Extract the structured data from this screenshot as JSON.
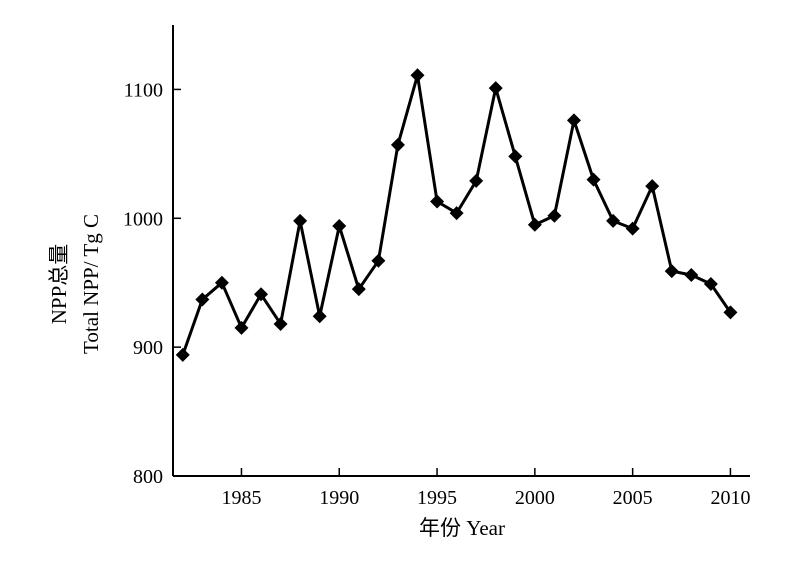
{
  "chart_data": {
    "type": "line",
    "xlabel": "年份 Year",
    "ylabel_line1": "NPP总量",
    "ylabel_line2": "Total NPP/ Tg C",
    "xlim": [
      1981.5,
      2011
    ],
    "ylim": [
      800,
      1150
    ],
    "x_ticks": [
      1985,
      1990,
      1995,
      2000,
      2005,
      2010
    ],
    "y_ticks": [
      800,
      900,
      1000,
      1100
    ],
    "marker": "diamond",
    "line_color": "#000000",
    "series": [
      {
        "x": [
          1982,
          1983,
          1984,
          1985,
          1986,
          1987,
          1988,
          1989,
          1990,
          1991,
          1992,
          1993,
          1994,
          1995,
          1996,
          1997,
          1998,
          1999,
          2000,
          2001,
          2002,
          2003,
          2004,
          2005,
          2006,
          2007,
          2008,
          2009,
          2010
        ],
        "y": [
          894,
          937,
          950,
          915,
          941,
          918,
          998,
          924,
          994,
          945,
          967,
          1057,
          1111,
          1013,
          1004,
          1029,
          1101,
          1048,
          995,
          1002,
          1076,
          1030,
          998,
          992,
          1025,
          959,
          956,
          949,
          927
        ]
      }
    ]
  }
}
